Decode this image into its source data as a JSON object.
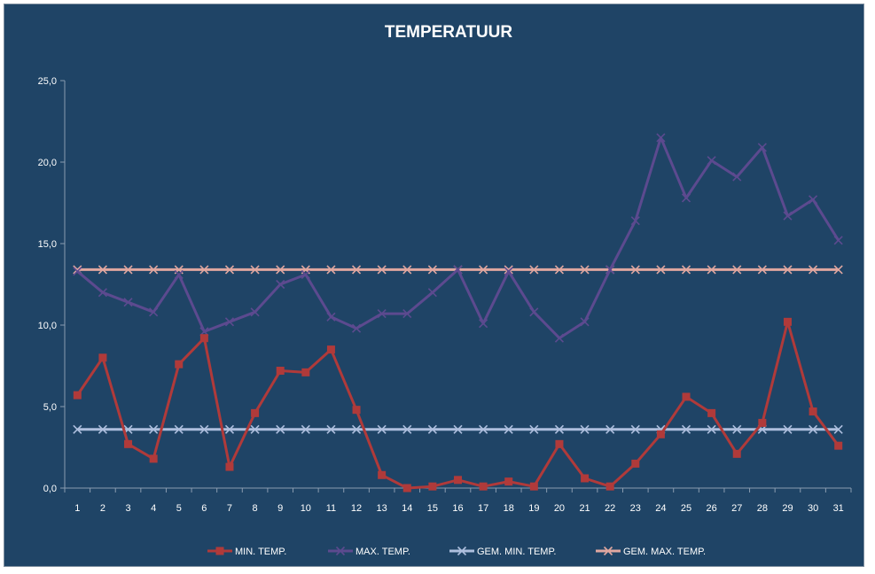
{
  "colors": {
    "background": "#1f4466",
    "min": "#b03a3a",
    "max": "#5c4a8f",
    "gem_min": "#aebfde",
    "gem_max": "#e0a7a0",
    "axis": "#8a9cb0"
  },
  "chart_data": {
    "type": "line",
    "title": "TEMPERATUUR",
    "categories": [
      "1",
      "2",
      "3",
      "4",
      "5",
      "6",
      "7",
      "8",
      "9",
      "10",
      "11",
      "12",
      "13",
      "14",
      "15",
      "16",
      "17",
      "18",
      "19",
      "20",
      "21",
      "22",
      "23",
      "24",
      "25",
      "26",
      "27",
      "28",
      "29",
      "30",
      "31"
    ],
    "ylim": [
      0,
      25
    ],
    "yticks": [
      "0,0",
      "5,0",
      "10,0",
      "15,0",
      "20,0",
      "25,0"
    ],
    "grid": false,
    "legend_position": "bottom",
    "series": [
      {
        "name": "MIN. TEMP.",
        "marker": "square",
        "color": "#b03a3a",
        "values": [
          5.7,
          8.0,
          2.7,
          1.8,
          7.6,
          9.2,
          1.3,
          4.6,
          7.2,
          7.1,
          8.5,
          4.8,
          0.8,
          0.0,
          0.1,
          0.5,
          0.1,
          0.4,
          0.1,
          2.7,
          0.6,
          0.1,
          1.5,
          3.3,
          5.6,
          4.6,
          2.1,
          4.0,
          10.2,
          4.7,
          2.6
        ]
      },
      {
        "name": "MAX. TEMP.",
        "marker": "x",
        "color": "#5c4a8f",
        "values": [
          13.3,
          12.0,
          11.4,
          10.8,
          13.1,
          9.6,
          10.2,
          10.8,
          12.5,
          13.1,
          10.5,
          9.8,
          10.7,
          10.7,
          12.0,
          13.4,
          10.1,
          13.3,
          10.8,
          9.2,
          10.2,
          13.4,
          16.4,
          21.5,
          17.8,
          20.1,
          19.1,
          20.9,
          16.7,
          17.7,
          15.2
        ]
      },
      {
        "name": "GEM. MIN. TEMP.",
        "marker": "x",
        "color": "#aebfde",
        "values": [
          3.6,
          3.6,
          3.6,
          3.6,
          3.6,
          3.6,
          3.6,
          3.6,
          3.6,
          3.6,
          3.6,
          3.6,
          3.6,
          3.6,
          3.6,
          3.6,
          3.6,
          3.6,
          3.6,
          3.6,
          3.6,
          3.6,
          3.6,
          3.6,
          3.6,
          3.6,
          3.6,
          3.6,
          3.6,
          3.6,
          3.6
        ]
      },
      {
        "name": "GEM. MAX. TEMP.",
        "marker": "x",
        "color": "#e0a7a0",
        "values": [
          13.4,
          13.4,
          13.4,
          13.4,
          13.4,
          13.4,
          13.4,
          13.4,
          13.4,
          13.4,
          13.4,
          13.4,
          13.4,
          13.4,
          13.4,
          13.4,
          13.4,
          13.4,
          13.4,
          13.4,
          13.4,
          13.4,
          13.4,
          13.4,
          13.4,
          13.4,
          13.4,
          13.4,
          13.4,
          13.4,
          13.4
        ]
      }
    ]
  }
}
